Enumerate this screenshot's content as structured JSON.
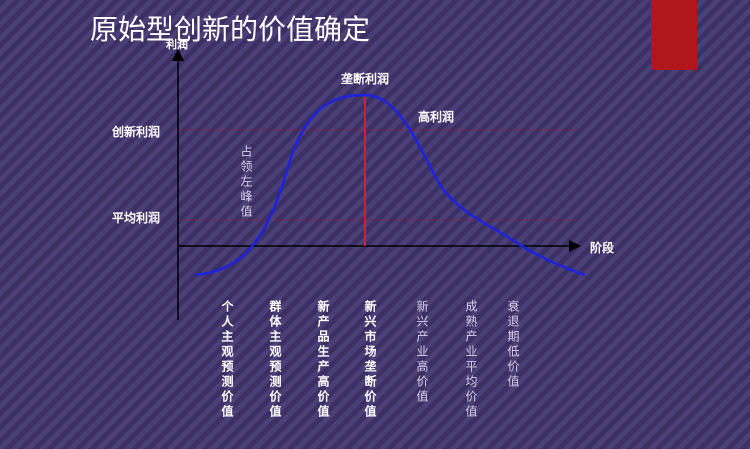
{
  "title": "原始型创新的价值确定",
  "axes": {
    "y_label": "利润",
    "x_label": "阶段"
  },
  "levels": [
    "创新利润",
    "平均利润"
  ],
  "peak_labels": {
    "monopoly": "垄断利润",
    "high": "高利润"
  },
  "annotation": "占领左峰值",
  "stages": [
    "个人主观预测价值",
    "群体主观预测价值",
    "新产品生产高价值",
    "新兴市场垄断价值",
    "新兴产业高价值",
    "成熟产业平均价值",
    "衰退期低价值"
  ]
}
